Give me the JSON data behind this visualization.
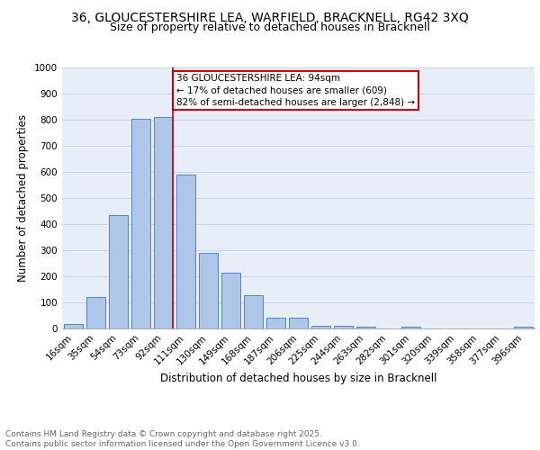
{
  "title_line1": "36, GLOUCESTERSHIRE LEA, WARFIELD, BRACKNELL, RG42 3XQ",
  "title_line2": "Size of property relative to detached houses in Bracknell",
  "xlabel": "Distribution of detached houses by size in Bracknell",
  "ylabel": "Number of detached properties",
  "bar_labels": [
    "16sqm",
    "35sqm",
    "54sqm",
    "73sqm",
    "92sqm",
    "111sqm",
    "130sqm",
    "149sqm",
    "168sqm",
    "187sqm",
    "206sqm",
    "225sqm",
    "244sqm",
    "263sqm",
    "282sqm",
    "301sqm",
    "320sqm",
    "339sqm",
    "358sqm",
    "377sqm",
    "396sqm"
  ],
  "bar_values": [
    18,
    120,
    435,
    805,
    810,
    590,
    290,
    215,
    128,
    42,
    40,
    12,
    10,
    8,
    0,
    8,
    0,
    0,
    0,
    0,
    8
  ],
  "bar_color": "#aec6e8",
  "bar_edge_color": "#4472c4",
  "annotation_text": "36 GLOUCESTERSHIRE LEA: 94sqm\n← 17% of detached houses are smaller (609)\n82% of semi-detached houses are larger (2,848) →",
  "annotation_box_color": "#ffffff",
  "annotation_box_edge_color": "#cc0000",
  "vline_x_index": 4.42,
  "vline_color": "#cc0000",
  "ylim": [
    0,
    1000
  ],
  "yticks": [
    0,
    100,
    200,
    300,
    400,
    500,
    600,
    700,
    800,
    900,
    1000
  ],
  "grid_color": "#c8d4e8",
  "background_color": "#e8eef8",
  "footer_text": "Contains HM Land Registry data © Crown copyright and database right 2025.\nContains public sector information licensed under the Open Government Licence v3.0.",
  "title_fontsize": 10,
  "subtitle_fontsize": 9,
  "axis_label_fontsize": 8.5,
  "tick_fontsize": 7.5,
  "annotation_fontsize": 7.5,
  "footer_fontsize": 6.5
}
